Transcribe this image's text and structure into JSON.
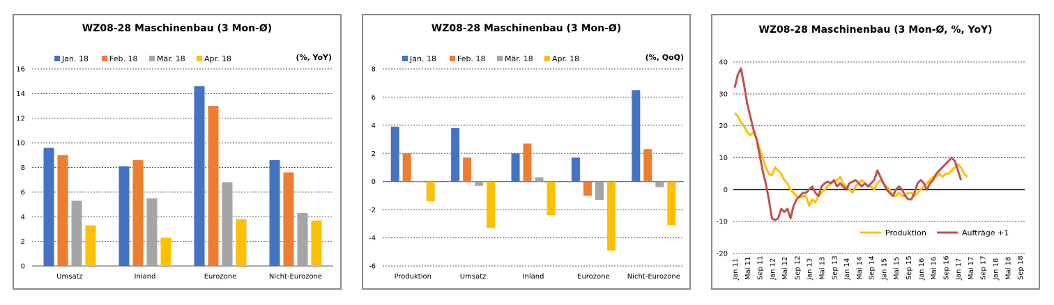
{
  "chart_data": [
    {
      "type": "bar",
      "title": "WZ08-28 Maschinenbau (3 Mon-Ø)",
      "unit_label": "(%, YoY)",
      "categories": [
        "Umsatz",
        "Inland",
        "Eurozone",
        "Nicht-Eurozone"
      ],
      "ylim": [
        0,
        16
      ],
      "yticks": [
        0,
        2,
        4,
        6,
        8,
        10,
        12,
        14,
        16
      ],
      "grid": true,
      "legend_position": "top",
      "series": [
        {
          "name": "Jan. 18",
          "color": "#4472c4",
          "values": [
            9.6,
            8.1,
            14.6,
            8.6
          ]
        },
        {
          "name": "Feb. 18",
          "color": "#ed7d31",
          "values": [
            9.0,
            8.6,
            13.0,
            7.6
          ]
        },
        {
          "name": "Mär. 18",
          "color": "#a5a5a5",
          "values": [
            5.3,
            5.5,
            6.8,
            4.3
          ]
        },
        {
          "name": "Apr. 18",
          "color": "#ffc000",
          "values": [
            3.3,
            2.3,
            3.8,
            3.7
          ]
        }
      ]
    },
    {
      "type": "bar",
      "title": "WZ08-28 Maschinenbau (3 Mon-Ø)",
      "unit_label": "(%, QoQ)",
      "categories": [
        "Produktion",
        "Umsatz",
        "Inland",
        "Eurozone",
        "Nicht-Eurozone"
      ],
      "ylim": [
        -6,
        8
      ],
      "yticks": [
        -6,
        -4,
        -2,
        0,
        2,
        4,
        6,
        8
      ],
      "grid": true,
      "legend_position": "top",
      "series": [
        {
          "name": "Jan. 18",
          "color": "#4472c4",
          "values": [
            3.9,
            3.8,
            2.0,
            1.7,
            6.5
          ]
        },
        {
          "name": "Feb. 18",
          "color": "#ed7d31",
          "values": [
            2.0,
            1.7,
            2.7,
            -1.0,
            2.3
          ]
        },
        {
          "name": "Mär. 18",
          "color": "#a5a5a5",
          "values": [
            0.0,
            -0.3,
            0.3,
            -1.3,
            -0.4
          ]
        },
        {
          "name": "Apr. 18",
          "color": "#ffc000",
          "values": [
            -1.4,
            -3.3,
            -2.4,
            -4.9,
            -3.1
          ]
        }
      ]
    },
    {
      "type": "line",
      "title": "WZ08-28 Maschinenbau (3 Mon-Ø, %, YoY)",
      "ylim": [
        -20,
        40
      ],
      "yticks": [
        -20,
        -10,
        0,
        10,
        20,
        30,
        40
      ],
      "grid": true,
      "legend_position": "bottom-right",
      "x_labels": [
        "Jan 11",
        "Mai 11",
        "Sep 11",
        "Jan 12",
        "Mai 12",
        "Sep 12",
        "Jan 13",
        "Mai 13",
        "Sep 13",
        "Jan 14",
        "Mai 14",
        "Sep 14",
        "Jan 15",
        "Mai 15",
        "Sep 15",
        "Jan 16",
        "Mai 16",
        "Sep 16",
        "Jan 17",
        "Mai 17",
        "Sep 17",
        "Jan 18",
        "Mai 18",
        "Sep 18"
      ],
      "x_start": "Jan 11",
      "series": [
        {
          "name": "Produktion",
          "color": "#ffc000",
          "values": [
            24,
            23,
            21,
            20,
            18,
            17,
            18,
            16,
            13,
            10,
            7,
            5,
            4.5,
            7,
            6,
            5,
            3,
            2,
            0,
            -1,
            -2,
            -2.5,
            -2,
            -2,
            -5,
            -3,
            -4,
            -2,
            -1,
            0,
            1,
            2,
            2.5,
            3,
            4,
            2,
            1,
            0,
            -1,
            1,
            2,
            3,
            2,
            1,
            1,
            0,
            2,
            3,
            2,
            1,
            0,
            -2,
            -2,
            -1,
            -2,
            -2,
            -1,
            -1,
            -2,
            -1,
            0,
            1,
            2,
            3,
            4,
            4,
            5,
            4,
            5,
            5,
            6,
            7,
            8,
            7,
            5,
            4
          ]
        },
        {
          "name": "Aufträge +1",
          "color": "#c0504d",
          "values": [
            32,
            36,
            38,
            33,
            27,
            23,
            19,
            16,
            11,
            6,
            2,
            -3,
            -9,
            -9.5,
            -9,
            -6,
            -7,
            -6,
            -9,
            -5,
            -3,
            -2,
            -1,
            -1,
            0,
            1,
            -1,
            -2,
            1,
            2,
            2.5,
            2,
            3,
            1,
            2,
            1,
            0,
            2,
            2.5,
            3,
            2,
            1,
            2,
            1,
            2,
            3,
            6,
            4,
            2,
            0,
            -1,
            -2,
            0,
            1,
            0,
            -2,
            -3,
            -3,
            -1,
            2,
            3,
            2,
            0,
            2,
            3,
            5,
            6,
            7,
            8,
            9,
            10,
            9,
            6,
            3
          ]
        }
      ]
    }
  ]
}
